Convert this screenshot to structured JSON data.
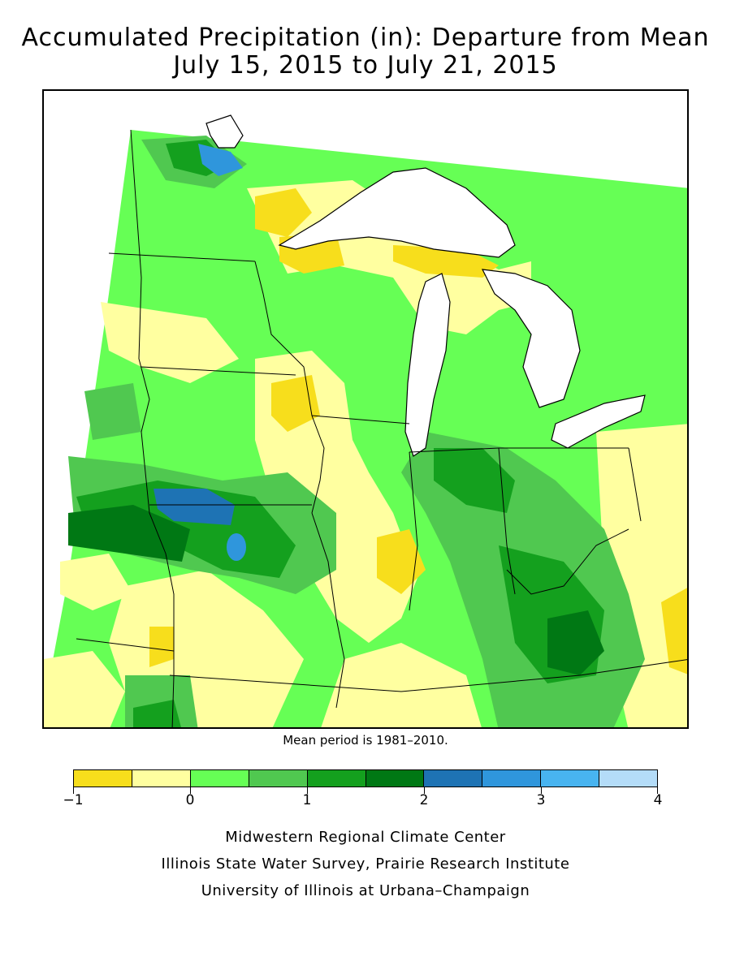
{
  "title": {
    "line1": "Accumulated Precipitation (in): Departure from Mean",
    "line2": "July 15, 2015 to July 21, 2015"
  },
  "map": {
    "note": "Mean period is 1981–2010."
  },
  "legend": {
    "colors": [
      "#f7de1c",
      "#ffffa0",
      "#66ff55",
      "#50c850",
      "#14a01e",
      "#007814",
      "#1e73b4",
      "#2f96dc",
      "#48b4f0",
      "#b4dcf8"
    ],
    "labels": [
      "-1",
      "0",
      "1",
      "2",
      "3",
      "4"
    ]
  },
  "credits": {
    "line1": "Midwestern Regional Climate Center",
    "line2": "Illinois State Water Survey, Prairie Research Institute",
    "line3": "University of Illinois at Urbana–Champaign"
  }
}
